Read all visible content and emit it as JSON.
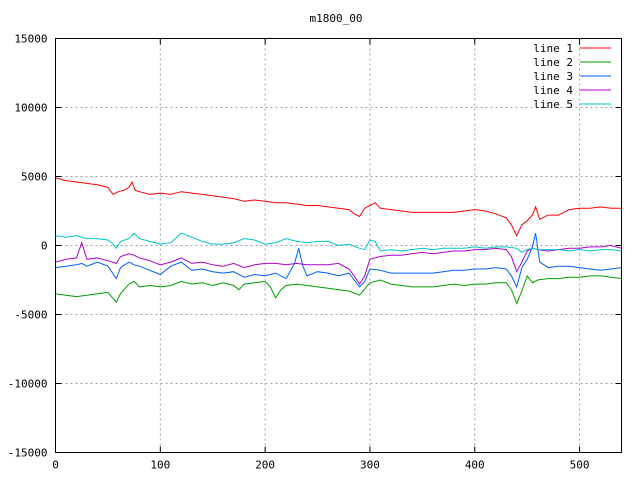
{
  "chart_data": {
    "type": "line",
    "title": "m1800_00",
    "xlabel": "",
    "ylabel": "",
    "xlim": [
      0,
      540
    ],
    "ylim": [
      -15000,
      15000
    ],
    "x_ticks": [
      0,
      100,
      200,
      300,
      400,
      500
    ],
    "y_ticks": [
      -15000,
      -10000,
      -5000,
      0,
      5000,
      10000,
      15000
    ],
    "grid": true,
    "legend_position": "top-right",
    "series": [
      {
        "name": "line 1",
        "color": "#ff0000",
        "x": [
          0,
          10,
          20,
          30,
          40,
          50,
          55,
          60,
          65,
          70,
          73,
          76,
          80,
          90,
          100,
          110,
          120,
          130,
          140,
          150,
          160,
          170,
          180,
          190,
          200,
          210,
          220,
          230,
          240,
          250,
          260,
          270,
          280,
          285,
          290,
          295,
          300,
          305,
          310,
          320,
          330,
          340,
          350,
          360,
          370,
          380,
          390,
          400,
          410,
          420,
          430,
          435,
          440,
          445,
          450,
          455,
          458,
          462,
          470,
          480,
          490,
          500,
          510,
          520,
          530,
          540
        ],
        "y": [
          4900,
          4700,
          4600,
          4500,
          4400,
          4200,
          3700,
          3900,
          4000,
          4200,
          4600,
          4000,
          3900,
          3700,
          3800,
          3700,
          3900,
          3800,
          3700,
          3600,
          3500,
          3400,
          3200,
          3300,
          3200,
          3100,
          3100,
          3000,
          2900,
          2900,
          2800,
          2700,
          2600,
          2300,
          2100,
          2700,
          2900,
          3100,
          2700,
          2600,
          2500,
          2400,
          2400,
          2400,
          2400,
          2400,
          2500,
          2600,
          2500,
          2300,
          2000,
          1500,
          700,
          1500,
          1800,
          2200,
          2800,
          1900,
          2200,
          2200,
          2600,
          2700,
          2700,
          2800,
          2700,
          2700
        ]
      },
      {
        "name": "line 2",
        "color": "#00a000",
        "x": [
          0,
          10,
          20,
          30,
          40,
          50,
          58,
          62,
          70,
          75,
          80,
          90,
          100,
          110,
          120,
          130,
          140,
          150,
          160,
          170,
          175,
          180,
          190,
          200,
          205,
          210,
          215,
          220,
          230,
          240,
          250,
          260,
          270,
          280,
          290,
          300,
          310,
          320,
          330,
          340,
          350,
          360,
          370,
          380,
          390,
          400,
          410,
          420,
          430,
          435,
          440,
          445,
          450,
          455,
          460,
          470,
          480,
          490,
          500,
          510,
          520,
          530,
          540
        ],
        "y": [
          -3500,
          -3600,
          -3700,
          -3600,
          -3500,
          -3400,
          -4100,
          -3500,
          -2800,
          -2600,
          -3000,
          -2900,
          -3000,
          -2900,
          -2600,
          -2800,
          -2700,
          -2900,
          -2700,
          -2900,
          -3200,
          -2800,
          -2700,
          -2600,
          -3000,
          -3800,
          -3200,
          -2900,
          -2800,
          -2900,
          -3000,
          -3100,
          -3200,
          -3300,
          -3600,
          -2700,
          -2500,
          -2800,
          -2900,
          -3000,
          -3000,
          -3000,
          -2900,
          -2800,
          -2900,
          -2800,
          -2800,
          -2700,
          -2700,
          -3200,
          -4200,
          -3300,
          -2200,
          -2700,
          -2500,
          -2400,
          -2400,
          -2300,
          -2300,
          -2200,
          -2200,
          -2300,
          -2400
        ]
      },
      {
        "name": "line 3",
        "color": "#0060ff",
        "x": [
          0,
          10,
          20,
          25,
          30,
          40,
          50,
          58,
          62,
          70,
          75,
          80,
          90,
          100,
          110,
          120,
          130,
          140,
          150,
          160,
          170,
          180,
          190,
          200,
          210,
          220,
          228,
          232,
          236,
          240,
          250,
          260,
          270,
          280,
          285,
          290,
          295,
          300,
          310,
          320,
          330,
          340,
          350,
          360,
          370,
          380,
          390,
          400,
          410,
          420,
          430,
          435,
          440,
          445,
          450,
          455,
          458,
          462,
          470,
          480,
          490,
          500,
          510,
          520,
          530,
          540
        ],
        "y": [
          -1600,
          -1500,
          -1400,
          -1300,
          -1500,
          -1200,
          -1500,
          -2400,
          -1600,
          -1200,
          -1400,
          -1500,
          -1800,
          -2100,
          -1500,
          -1200,
          -1800,
          -1700,
          -1900,
          -2000,
          -1900,
          -2300,
          -2100,
          -2200,
          -2000,
          -2400,
          -1300,
          -200,
          -1500,
          -2200,
          -1900,
          -2000,
          -2200,
          -2000,
          -2500,
          -3000,
          -2600,
          -1700,
          -1800,
          -2000,
          -2000,
          -2000,
          -2000,
          -2000,
          -1900,
          -1800,
          -1800,
          -1700,
          -1700,
          -1600,
          -1700,
          -2200,
          -3000,
          -1600,
          -1000,
          -100,
          900,
          -1200,
          -1600,
          -1500,
          -1500,
          -1600,
          -1700,
          -1800,
          -1700,
          -1600
        ]
      },
      {
        "name": "line 4",
        "color": "#b000d0",
        "x": [
          0,
          10,
          20,
          25,
          30,
          40,
          50,
          58,
          62,
          70,
          75,
          80,
          90,
          100,
          110,
          120,
          130,
          140,
          150,
          160,
          170,
          180,
          190,
          200,
          210,
          220,
          230,
          240,
          250,
          260,
          270,
          280,
          285,
          290,
          295,
          300,
          310,
          320,
          330,
          340,
          350,
          360,
          370,
          380,
          390,
          400,
          410,
          420,
          430,
          435,
          440,
          445,
          450,
          455,
          460,
          470,
          480,
          490,
          500,
          510,
          520,
          530,
          540
        ],
        "y": [
          -1200,
          -1000,
          -900,
          200,
          -1000,
          -900,
          -1100,
          -1300,
          -800,
          -600,
          -700,
          -900,
          -1100,
          -1400,
          -1200,
          -900,
          -1300,
          -1200,
          -1400,
          -1500,
          -1300,
          -1600,
          -1400,
          -1300,
          -1300,
          -1400,
          -1300,
          -1400,
          -1400,
          -1400,
          -1300,
          -1700,
          -2200,
          -2800,
          -2200,
          -1000,
          -800,
          -700,
          -700,
          -600,
          -500,
          -600,
          -500,
          -400,
          -400,
          -300,
          -300,
          -200,
          -300,
          -800,
          -1900,
          -1200,
          -400,
          -200,
          -300,
          -400,
          -300,
          -200,
          -200,
          -100,
          -100,
          0,
          -200
        ]
      },
      {
        "name": "line 5",
        "color": "#00c8c8",
        "x": [
          0,
          10,
          20,
          30,
          40,
          50,
          55,
          58,
          62,
          70,
          75,
          80,
          90,
          100,
          110,
          120,
          130,
          140,
          150,
          160,
          170,
          180,
          190,
          200,
          210,
          220,
          230,
          240,
          250,
          260,
          270,
          280,
          290,
          295,
          300,
          305,
          310,
          320,
          330,
          340,
          350,
          360,
          370,
          380,
          390,
          400,
          410,
          420,
          430,
          440,
          445,
          450,
          455,
          460,
          470,
          480,
          490,
          500,
          510,
          520,
          530,
          540
        ],
        "y": [
          700,
          600,
          700,
          500,
          500,
          400,
          100,
          -200,
          300,
          500,
          900,
          500,
          300,
          100,
          200,
          900,
          600,
          300,
          100,
          100,
          200,
          500,
          400,
          100,
          200,
          500,
          300,
          200,
          300,
          300,
          0,
          100,
          -200,
          -300,
          400,
          300,
          -400,
          -300,
          -400,
          -300,
          -200,
          -300,
          -200,
          -200,
          -200,
          -100,
          -200,
          -100,
          -100,
          -200,
          -500,
          -300,
          -200,
          -300,
          -300,
          -300,
          -400,
          -300,
          -400,
          -300,
          -300,
          -400
        ]
      }
    ]
  }
}
